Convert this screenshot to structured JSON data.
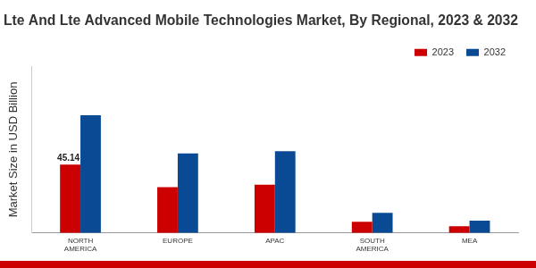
{
  "chart_data": {
    "type": "bar",
    "title": "Lte And Lte Advanced Mobile Technologies Market, By Regional, 2023 & 2032",
    "y_label": "Market Size in USD Billion",
    "categories": [
      "NORTH AMERICA",
      "EUROPE",
      "APAC",
      "SOUTH AMERICA",
      "MEA"
    ],
    "series": [
      {
        "name": "2023",
        "color": "#cc0000",
        "values": [
          45.14,
          30.3,
          31.8,
          7.4,
          4.4
        ],
        "value_labels": [
          "45.14",
          null,
          null,
          null,
          null
        ]
      },
      {
        "name": "2032",
        "color": "#0a4a94",
        "values": [
          77.7,
          52.5,
          54.0,
          13.3,
          8.1
        ]
      }
    ],
    "ylim": [
      0,
      110
    ],
    "tick_labels": "x",
    "grid": false,
    "legend": "top-right"
  }
}
